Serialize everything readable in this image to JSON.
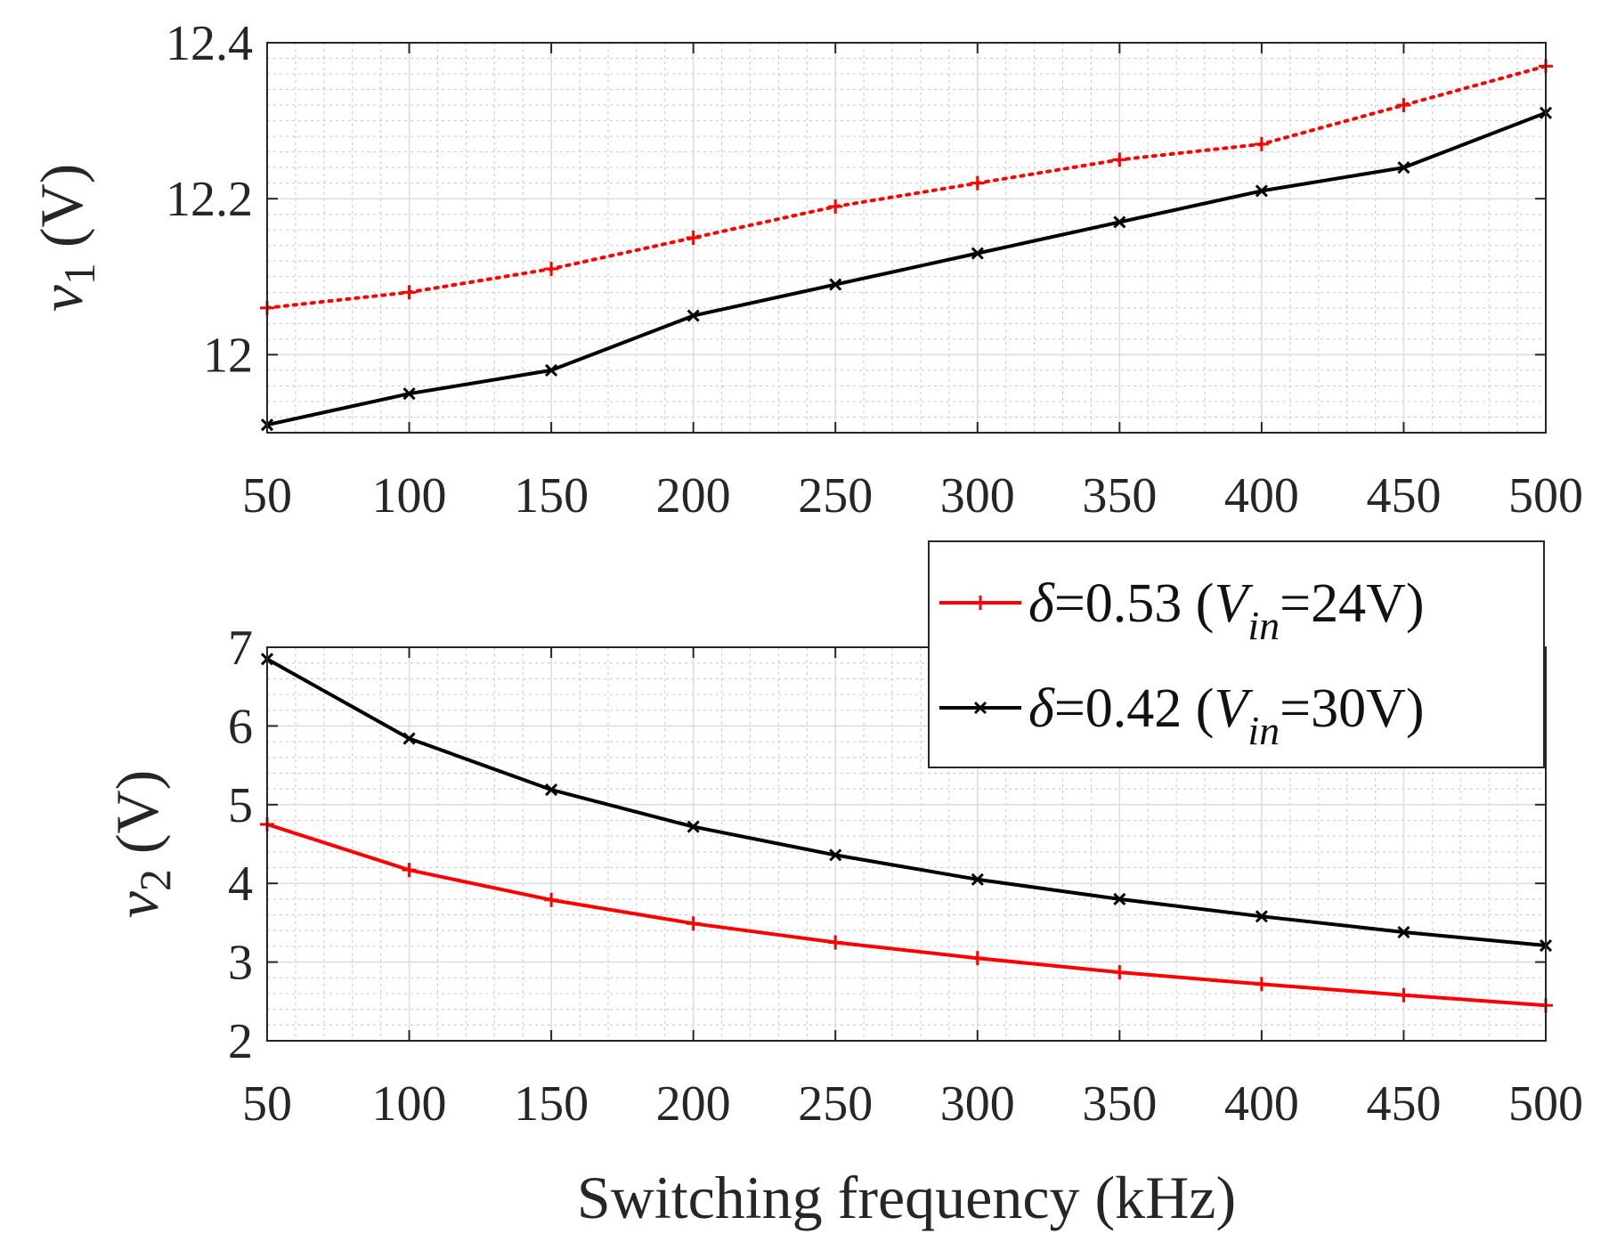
{
  "chart_data": [
    {
      "type": "line",
      "ylabel_var": "v",
      "ylabel_sub": "1",
      "ylabel_unit": " (V)",
      "xlim": [
        50,
        500
      ],
      "ylim": [
        11.9,
        12.4
      ],
      "x_ticks": [
        "50",
        "100",
        "150",
        "200",
        "250",
        "300",
        "350",
        "400",
        "450",
        "500"
      ],
      "x_tick_values": [
        50,
        100,
        150,
        200,
        250,
        300,
        350,
        400,
        450,
        500
      ],
      "y_ticks": [
        "12",
        "12.2",
        "12.4"
      ],
      "y_tick_values": [
        12,
        12.2,
        12.4
      ],
      "grid": true,
      "x": [
        50,
        100,
        150,
        200,
        250,
        300,
        350,
        400,
        450,
        500
      ],
      "series": [
        {
          "name": "δ=0.53 (Vin=24V)",
          "color": "#ff0000",
          "style": "dotted",
          "marker": "plus",
          "values": [
            12.06,
            12.08,
            12.11,
            12.15,
            12.19,
            12.22,
            12.25,
            12.27,
            12.32,
            12.37
          ]
        },
        {
          "name": "δ=0.42 (Vin=30V)",
          "color": "#000000",
          "style": "solid",
          "marker": "cross",
          "values": [
            11.91,
            11.95,
            11.98,
            12.05,
            12.09,
            12.13,
            12.17,
            12.21,
            12.24,
            12.31
          ]
        }
      ]
    },
    {
      "type": "line",
      "ylabel_var": "v",
      "ylabel_sub": "2",
      "ylabel_unit": " (V)",
      "xlabel": "Switching frequency (kHz)",
      "xlim": [
        50,
        500
      ],
      "ylim": [
        2,
        7
      ],
      "x_ticks": [
        "50",
        "100",
        "150",
        "200",
        "250",
        "300",
        "350",
        "400",
        "450",
        "500"
      ],
      "x_tick_values": [
        50,
        100,
        150,
        200,
        250,
        300,
        350,
        400,
        450,
        500
      ],
      "y_ticks": [
        "2",
        "3",
        "4",
        "5",
        "6",
        "7"
      ],
      "y_tick_values": [
        2,
        3,
        4,
        5,
        6,
        7
      ],
      "grid": true,
      "legend_position": "top-right",
      "x": [
        50,
        100,
        150,
        200,
        250,
        300,
        350,
        400,
        450,
        500
      ],
      "series": [
        {
          "name": "δ=0.53 (Vin=24V)",
          "color": "#ff0000",
          "style": "solid",
          "marker": "plus",
          "values": [
            4.75,
            4.17,
            3.79,
            3.49,
            3.25,
            3.05,
            2.87,
            2.72,
            2.58,
            2.45
          ]
        },
        {
          "name": "δ=0.42 (Vin=30V)",
          "color": "#000000",
          "style": "solid",
          "marker": "cross",
          "values": [
            6.85,
            5.84,
            5.19,
            4.72,
            4.36,
            4.05,
            3.8,
            3.58,
            3.38,
            3.21
          ]
        }
      ]
    }
  ],
  "legend": {
    "items": [
      {
        "symbol": "δ",
        "eq": "=0.53 (",
        "var": "V",
        "sub": "in",
        "tail": "=24V)",
        "color": "#ff0000",
        "marker": "plus"
      },
      {
        "symbol": "δ",
        "eq": "=0.42 (",
        "var": "V",
        "sub": "in",
        "tail": "=30V)",
        "color": "#000000",
        "marker": "cross"
      }
    ]
  }
}
